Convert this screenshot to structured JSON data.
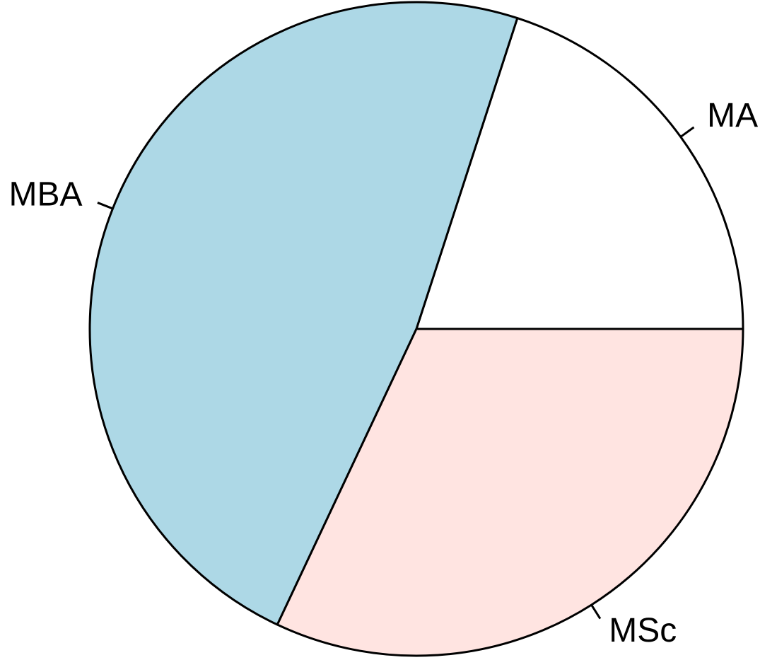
{
  "chart_data": {
    "type": "pie",
    "title": "",
    "start_angle_deg": 0,
    "direction": "counterclockwise",
    "slices": [
      {
        "label": "MA",
        "value": 20,
        "color": "#FFFFFF"
      },
      {
        "label": "MBA",
        "value": 48,
        "color": "#ADD8E6"
      },
      {
        "label": "MSc",
        "value": 32,
        "color": "#FFE4E1"
      }
    ],
    "outline_color": "#000000"
  }
}
